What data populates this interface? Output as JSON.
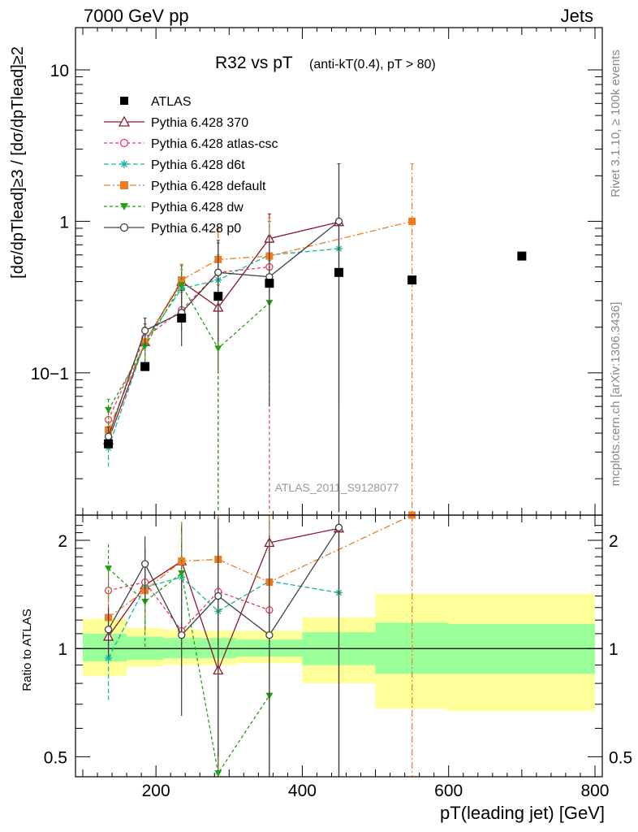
{
  "header": {
    "left": "7000 GeV pp",
    "right": "Jets"
  },
  "side_labels": {
    "rivet": "Rivet 3.1.10, ≥ 100k events",
    "mcplots": "mcplots.cern.ch [arXiv:1306.3436]"
  },
  "chart_data": [
    {
      "type": "line",
      "title": "R32 vs pT",
      "title_suffix": "(anti-kT(0.4), pT > 80)",
      "analysis": "ATLAS_2011_S9128077",
      "ylabel": "[dσ/dpTlead]≥3 / [dσ/dpTlead]≥2",
      "xlim": [
        90,
        810
      ],
      "ylim": [
        0.0115,
        19
      ],
      "yscale": "log",
      "yticks": [
        "10−1",
        "1",
        "10"
      ],
      "legend_placement": "top-left",
      "series": [
        {
          "name": "ATLAS",
          "color": "#000000",
          "marker": "square",
          "x": [
            135,
            185,
            235,
            285,
            355,
            450,
            550,
            700
          ],
          "y": [
            0.034,
            0.11,
            0.23,
            0.32,
            0.39,
            0.46,
            0.41,
            0.59
          ]
        },
        {
          "name": "Pythia 6.428 370",
          "color": "#8b1a2b",
          "marker": "triangle",
          "dash": "",
          "x": [
            135,
            185,
            235,
            285,
            355,
            450
          ],
          "y": [
            0.036,
            0.16,
            0.4,
            0.27,
            0.77,
            0.99
          ],
          "err": [
            [
              0.031,
              0.041
            ],
            [
              0.12,
              0.21
            ],
            [
              0.29,
              0.52
            ],
            [
              0.1,
              0.72
            ],
            [
              0.13,
              1.12
            ],
            [
              0.012,
              2.4
            ]
          ]
        },
        {
          "name": "Pythia 6.428 atlas-csc",
          "color": "#e8385a",
          "marker": "circle-open",
          "dash": "4,3",
          "x": [
            135,
            185,
            235,
            285,
            355
          ],
          "y": [
            0.049,
            0.17,
            0.26,
            0.46,
            0.5
          ],
          "err": [
            [
              0.043,
              0.055
            ],
            [
              0.14,
              0.2
            ],
            [
              0.19,
              0.34
            ],
            [
              0.012,
              0.9
            ],
            [
              0.012,
              1.0
            ]
          ]
        },
        {
          "name": "Pythia 6.428 d6t",
          "color": "#20b2a0",
          "marker": "star",
          "dash": "6,3",
          "x": [
            135,
            185,
            235,
            285,
            355,
            450
          ],
          "y": [
            0.032,
            0.16,
            0.36,
            0.41,
            0.6,
            0.66
          ],
          "err": [
            [
              0.024,
              0.04
            ],
            [
              0.12,
              0.2
            ],
            [
              0.24,
              0.48
            ],
            [
              0.22,
              0.6
            ],
            [
              0.1,
              1.0
            ],
            [
              0.06,
              1.0
            ]
          ]
        },
        {
          "name": "Pythia 6.428 default",
          "color": "#f07c20",
          "marker": "square",
          "dash": "8,3,2,3",
          "x": [
            135,
            185,
            235,
            285,
            355,
            550
          ],
          "y": [
            0.042,
            0.16,
            0.41,
            0.56,
            0.59,
            1.0
          ],
          "err": [
            [
              0.036,
              0.048
            ],
            [
              0.12,
              0.2
            ],
            [
              0.27,
              0.52
            ],
            [
              0.25,
              0.85
            ],
            [
              0.12,
              1.05
            ],
            [
              0.012,
              2.4
            ]
          ]
        },
        {
          "name": "Pythia 6.428 dw",
          "color": "#22a012",
          "marker": "triangle-down",
          "dash": "4,3",
          "x": [
            135,
            185,
            235,
            285,
            355
          ],
          "y": [
            0.057,
            0.15,
            0.38,
            0.145,
            0.29
          ],
          "err": [
            [
              0.045,
              0.067
            ],
            [
              0.11,
              0.19
            ],
            [
              0.25,
              0.51
            ],
            [
              0.012,
              0.38
            ],
            [
              0.06,
              0.55
            ]
          ]
        },
        {
          "name": "Pythia 6.428 p0",
          "color": "#404040",
          "marker": "circle-open",
          "dash": "",
          "x": [
            135,
            185,
            235,
            285,
            355,
            450
          ],
          "y": [
            0.038,
            0.19,
            0.25,
            0.46,
            0.43,
            1.0
          ],
          "err": [
            [
              0.032,
              0.044
            ],
            [
              0.15,
              0.23
            ],
            [
              0.15,
              0.35
            ],
            [
              0.16,
              0.75
            ],
            [
              0.06,
              0.8
            ],
            [
              0.012,
              2.4
            ]
          ]
        }
      ]
    },
    {
      "type": "line",
      "ylabel": "Ratio to ATLAS",
      "xlabel": "pT(leading jet) [GeV]",
      "xlim": [
        90,
        810
      ],
      "ylim": [
        0.44,
        2.35
      ],
      "yscale": "log",
      "yticks": [
        "0.5",
        "1",
        "2"
      ],
      "xticks": [
        "200",
        "400",
        "600",
        "800"
      ],
      "uncertainty_bands": [
        {
          "x0": 100,
          "x1": 160,
          "inner": [
            0.92,
            1.1
          ],
          "outer": [
            0.84,
            1.21
          ]
        },
        {
          "x0": 160,
          "x1": 210,
          "inner": [
            0.93,
            1.08
          ],
          "outer": [
            0.89,
            1.14
          ]
        },
        {
          "x0": 210,
          "x1": 260,
          "inner": [
            0.94,
            1.07
          ],
          "outer": [
            0.9,
            1.13
          ]
        },
        {
          "x0": 260,
          "x1": 310,
          "inner": [
            0.94,
            1.07
          ],
          "outer": [
            0.9,
            1.12
          ]
        },
        {
          "x0": 310,
          "x1": 400,
          "inner": [
            0.95,
            1.06
          ],
          "outer": [
            0.91,
            1.12
          ]
        },
        {
          "x0": 400,
          "x1": 500,
          "inner": [
            0.9,
            1.11
          ],
          "outer": [
            0.8,
            1.22
          ]
        },
        {
          "x0": 500,
          "x1": 600,
          "inner": [
            0.85,
            1.18
          ],
          "outer": [
            0.68,
            1.42
          ]
        },
        {
          "x0": 600,
          "x1": 800,
          "inner": [
            0.85,
            1.17
          ],
          "outer": [
            0.67,
            1.42
          ]
        }
      ],
      "series": [
        {
          "name": "Pythia 6.428 370",
          "x": [
            135,
            185,
            235,
            285,
            355,
            450
          ],
          "y": [
            1.08,
            1.5,
            1.75,
            0.87,
            1.97,
            2.16
          ],
          "err": [
            [
              0.95,
              1.2
            ],
            [
              1.15,
              1.9
            ],
            [
              1.3,
              2.25
            ],
            [
              0.33,
              2.2
            ],
            [
              0.33,
              2.6
            ],
            [
              0.03,
              5.0
            ]
          ]
        },
        {
          "name": "Pythia 6.428 atlas-csc",
          "x": [
            135,
            185,
            235,
            285,
            355
          ],
          "y": [
            1.45,
            1.53,
            1.12,
            1.44,
            1.28
          ],
          "err": [
            [
              1.25,
              1.65
            ],
            [
              1.25,
              1.8
            ],
            [
              0.8,
              1.45
            ],
            [
              0.03,
              2.8
            ],
            [
              0.03,
              2.6
            ]
          ]
        },
        {
          "name": "Pythia 6.428 d6t",
          "x": [
            135,
            185,
            235,
            285,
            355,
            450
          ],
          "y": [
            0.94,
            1.48,
            1.58,
            1.27,
            1.54,
            1.43
          ],
          "err": [
            [
              0.72,
              1.18
            ],
            [
              1.1,
              1.85
            ],
            [
              1.05,
              2.1
            ],
            [
              0.7,
              1.9
            ],
            [
              0.25,
              2.6
            ],
            [
              0.13,
              2.2
            ]
          ]
        },
        {
          "name": "Pythia 6.428 default",
          "x": [
            135,
            185,
            235,
            285,
            355,
            550
          ],
          "y": [
            1.22,
            1.45,
            1.75,
            1.77,
            1.53,
            2.37
          ],
          "err": [
            [
              1.05,
              1.42
            ],
            [
              1.1,
              1.8
            ],
            [
              1.17,
              2.25
            ],
            [
              0.78,
              2.7
            ],
            [
              0.31,
              2.7
            ],
            [
              0.03,
              5.0
            ]
          ]
        },
        {
          "name": "Pythia 6.428 dw",
          "x": [
            135,
            185,
            235,
            285,
            355
          ],
          "y": [
            1.67,
            1.35,
            1.62,
            0.45,
            0.74
          ],
          "err": [
            [
              1.35,
              1.95
            ],
            [
              1.0,
              1.72
            ],
            [
              1.1,
              2.2
            ],
            [
              0.03,
              1.2
            ],
            [
              0.15,
              1.41
            ]
          ]
        },
        {
          "name": "Pythia 6.428 p0",
          "x": [
            135,
            185,
            235,
            285,
            355,
            450
          ],
          "y": [
            1.13,
            1.72,
            1.09,
            1.4,
            1.09,
            2.17
          ],
          "err": [
            [
              0.95,
              1.3
            ],
            [
              1.35,
              2.05
            ],
            [
              0.65,
              1.55
            ],
            [
              0.5,
              2.3
            ],
            [
              0.15,
              2.05
            ],
            [
              0.03,
              5.0
            ]
          ]
        }
      ]
    }
  ]
}
